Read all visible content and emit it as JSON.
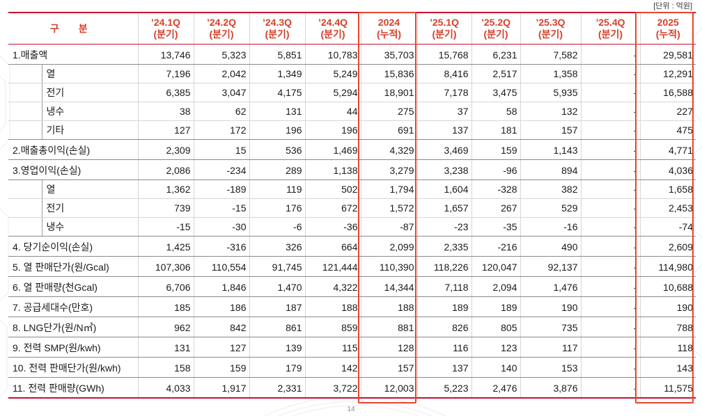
{
  "unit_note": "[단위 : 억원]",
  "page_number": "14",
  "header": {
    "label": "구 분",
    "columns": [
      {
        "l1": "’24.1Q",
        "l2": "(분기)"
      },
      {
        "l1": "’24.2Q",
        "l2": "(분기)"
      },
      {
        "l1": "’24.3Q",
        "l2": "(분기)"
      },
      {
        "l1": "’24.4Q",
        "l2": "(분기)"
      },
      {
        "l1": "2024",
        "l2": "(누적)"
      },
      {
        "l1": "’25.1Q",
        "l2": "(분기)"
      },
      {
        "l1": "’25.2Q",
        "l2": "(분기)"
      },
      {
        "l1": "’25.3Q",
        "l2": "(분기)"
      },
      {
        "l1": "’25.4Q",
        "l2": "(분기)"
      },
      {
        "l1": "2025",
        "l2": "(누적)"
      }
    ]
  },
  "rows": [
    {
      "label": "1.매출액",
      "v": [
        "13,746",
        "5,323",
        "5,851",
        "10,783",
        "35,703",
        "15,768",
        "6,231",
        "7,582",
        "-",
        "29,581"
      ]
    },
    {
      "sub": "열",
      "v": [
        "7,196",
        "2,042",
        "1,349",
        "5,249",
        "15,836",
        "8,416",
        "2,517",
        "1,358",
        "-",
        "12,291"
      ]
    },
    {
      "sub": "전기",
      "v": [
        "6,385",
        "3,047",
        "4,175",
        "5,294",
        "18,901",
        "7,178",
        "3,475",
        "5,935",
        "-",
        "16,588"
      ]
    },
    {
      "sub": "냉수",
      "v": [
        "38",
        "62",
        "131",
        "44",
        "275",
        "37",
        "58",
        "132",
        "-",
        "227"
      ]
    },
    {
      "sub": "기타",
      "v": [
        "127",
        "172",
        "196",
        "196",
        "691",
        "137",
        "181",
        "157",
        "-",
        "475"
      ]
    },
    {
      "label": "2.매출총이익(손실)",
      "v": [
        "2,309",
        "15",
        "536",
        "1,469",
        "4,329",
        "3,469",
        "159",
        "1,143",
        "-",
        "4,771"
      ]
    },
    {
      "label": "3.영업이익(손실)",
      "v": [
        "2,086",
        "-234",
        "289",
        "1,138",
        "3,279",
        "3,238",
        "-96",
        "894",
        "-",
        "4,036"
      ]
    },
    {
      "sub": "열",
      "v": [
        "1,362",
        "-189",
        "119",
        "502",
        "1,794",
        "1,604",
        "-328",
        "382",
        "-",
        "1,658"
      ]
    },
    {
      "sub": "전기",
      "v": [
        "739",
        "-15",
        "176",
        "672",
        "1,572",
        "1,657",
        "267",
        "529",
        "-",
        "2,453"
      ]
    },
    {
      "sub": "냉수",
      "v": [
        "-15",
        "-30",
        "-6",
        "-36",
        "-87",
        "-23",
        "-35",
        "-16",
        "-",
        "-74"
      ]
    },
    {
      "label": "4. 당기순이익(손실)",
      "v": [
        "1,425",
        "-316",
        "326",
        "664",
        "2,099",
        "2,335",
        "-216",
        "490",
        "-",
        "2,609"
      ]
    },
    {
      "label": "5. 열 판매단가(원/Gcal)",
      "v": [
        "107,306",
        "110,554",
        "91,745",
        "121,444",
        "110,390",
        "118,226",
        "120,047",
        "92,137",
        "-",
        "114,980"
      ]
    },
    {
      "label": "6. 열 판매량(천Gcal)",
      "v": [
        "6,706",
        "1,846",
        "1,470",
        "4,322",
        "14,344",
        "7,118",
        "2,094",
        "1,476",
        "-",
        "10,688"
      ]
    },
    {
      "label": "7. 공급세대수(만호)",
      "v": [
        "185",
        "186",
        "187",
        "188",
        "188",
        "189",
        "189",
        "190",
        "-",
        "190"
      ]
    },
    {
      "label": "8. LNG단가(원/N㎥)",
      "v": [
        "962",
        "842",
        "861",
        "859",
        "881",
        "826",
        "805",
        "735",
        "-",
        "788"
      ]
    },
    {
      "label": "9. 전력 SMP(원/kwh)",
      "v": [
        "131",
        "127",
        "139",
        "115",
        "128",
        "116",
        "123",
        "117",
        "-",
        "118"
      ]
    },
    {
      "label": "10. 전력 판매단가(원/kwh)",
      "v": [
        "158",
        "159",
        "179",
        "142",
        "157",
        "137",
        "140",
        "153",
        "-",
        "143"
      ]
    },
    {
      "label": "11. 전력 판매량(GWh)",
      "v": [
        "4,033",
        "1,917",
        "2,331",
        "3,722",
        "12,003",
        "5,223",
        "2,476",
        "3,876",
        "-",
        "11,575"
      ]
    }
  ]
}
